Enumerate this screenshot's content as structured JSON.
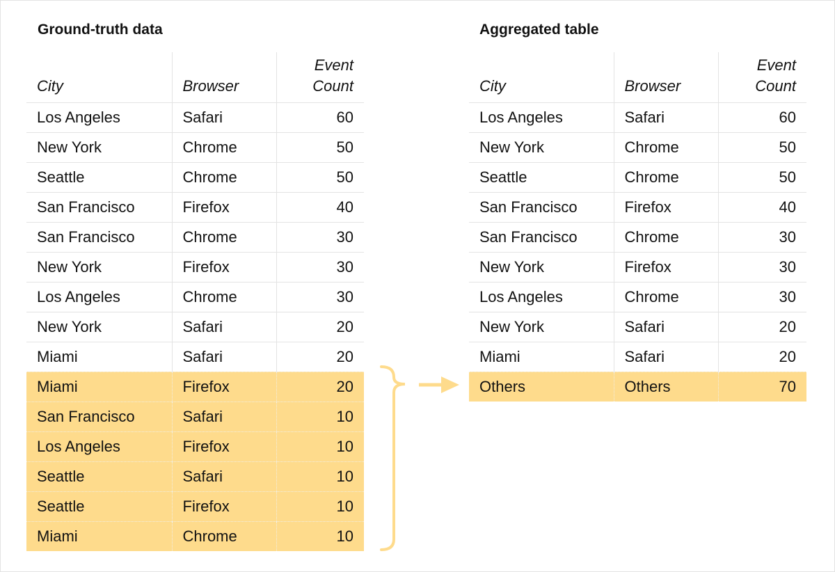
{
  "colors": {
    "highlight": "#fedb8c",
    "connector": "#fedb8c",
    "grid": "#e3e3e3"
  },
  "left": {
    "title": "Ground-truth data",
    "headers": [
      "City",
      "Browser",
      "Event Count"
    ],
    "rows": [
      [
        "Los Angeles",
        "Safari",
        "60"
      ],
      [
        "New York",
        "Chrome",
        "50"
      ],
      [
        "Seattle",
        "Chrome",
        "50"
      ],
      [
        "San Francisco",
        "Firefox",
        "40"
      ],
      [
        "San Francisco",
        "Chrome",
        "30"
      ],
      [
        "New York",
        "Firefox",
        "30"
      ],
      [
        "Los Angeles",
        "Chrome",
        "30"
      ],
      [
        "New York",
        "Safari",
        "20"
      ],
      [
        "Miami",
        "Safari",
        "20"
      ],
      [
        "Miami",
        "Firefox",
        "20"
      ],
      [
        "San Francisco",
        "Safari",
        "10"
      ],
      [
        "Los Angeles",
        "Firefox",
        "10"
      ],
      [
        "Seattle",
        "Safari",
        "10"
      ],
      [
        "Seattle",
        "Firefox",
        "10"
      ],
      [
        "Miami",
        "Chrome",
        "10"
      ]
    ],
    "highlighted_from_row": 9
  },
  "right": {
    "title": "Aggregated table",
    "headers": [
      "City",
      "Browser",
      "Event Count"
    ],
    "rows": [
      [
        "Los Angeles",
        "Safari",
        "60"
      ],
      [
        "New York",
        "Chrome",
        "50"
      ],
      [
        "Seattle",
        "Chrome",
        "50"
      ],
      [
        "San Francisco",
        "Firefox",
        "40"
      ],
      [
        "San Francisco",
        "Chrome",
        "30"
      ],
      [
        "New York",
        "Firefox",
        "30"
      ],
      [
        "Los Angeles",
        "Chrome",
        "30"
      ],
      [
        "New York",
        "Safari",
        "20"
      ],
      [
        "Miami",
        "Safari",
        "20"
      ],
      [
        "Others",
        "Others",
        "70"
      ]
    ],
    "highlighted_from_row": 9
  }
}
